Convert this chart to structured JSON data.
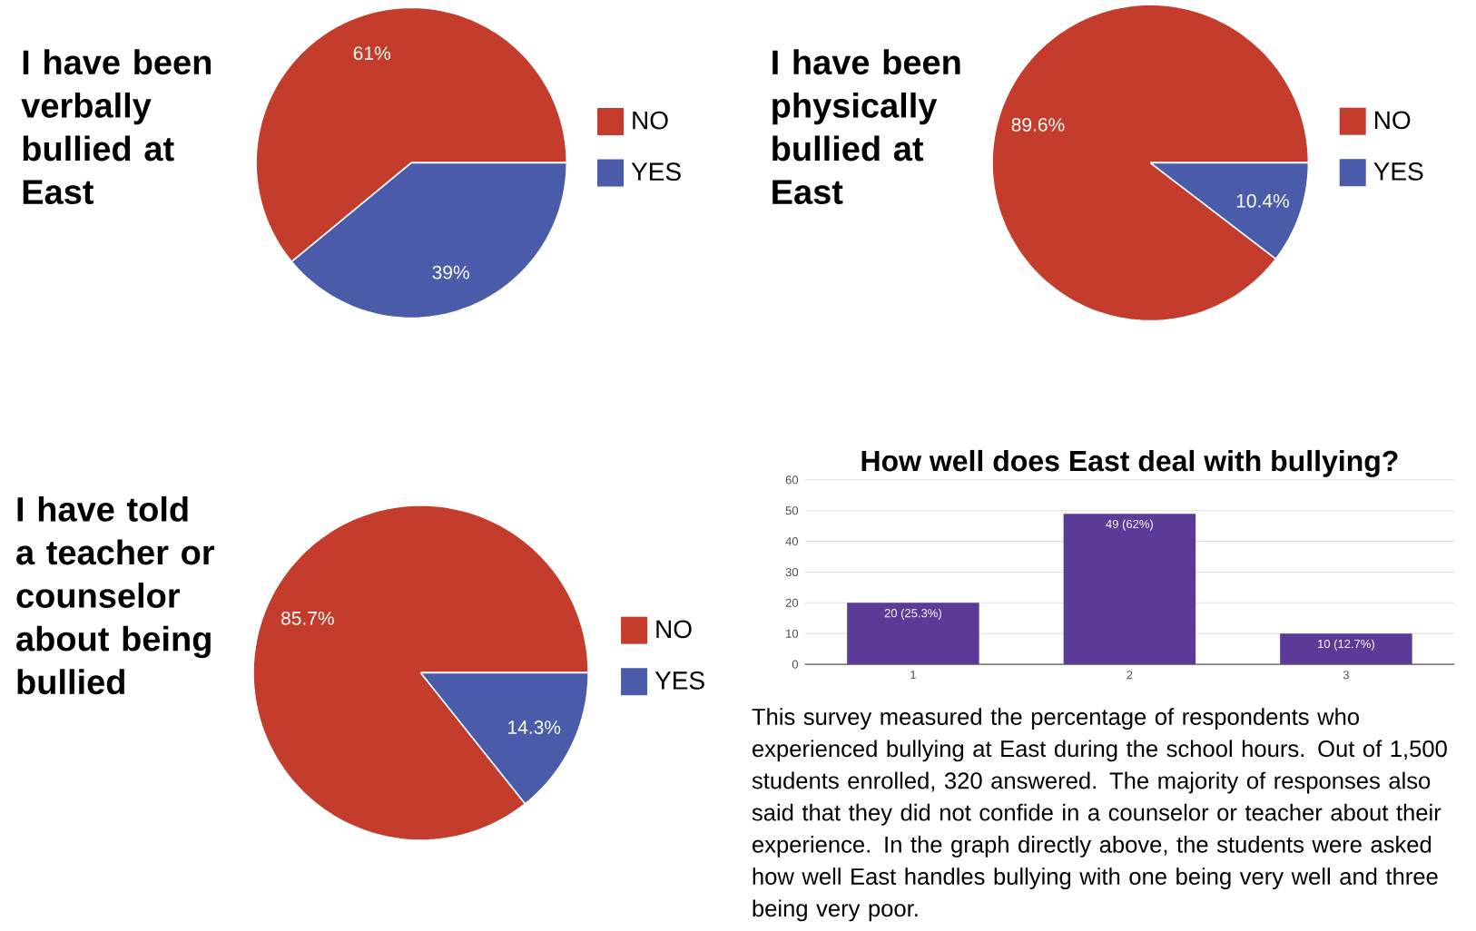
{
  "chart_data": [
    {
      "type": "pie",
      "title": "I have been verbally bullied at East",
      "categories": [
        "NO",
        "YES"
      ],
      "values": [
        61,
        39
      ],
      "colors": [
        "#c43c2b",
        "#4a5ba9"
      ],
      "value_labels": [
        "61%",
        "39%"
      ],
      "legend": "right"
    },
    {
      "type": "pie",
      "title": "I have been physically bullied at East",
      "categories": [
        "NO",
        "YES"
      ],
      "values": [
        89.6,
        10.4
      ],
      "colors": [
        "#c43c2b",
        "#4a5ba9"
      ],
      "value_labels": [
        "89.6%",
        "10.4%"
      ],
      "legend": "right"
    },
    {
      "type": "pie",
      "title": "I have told a teacher or counselor about being bullied",
      "categories": [
        "NO",
        "YES"
      ],
      "values": [
        85.7,
        14.3
      ],
      "colors": [
        "#c43c2b",
        "#4a5ba9"
      ],
      "value_labels": [
        "85.7%",
        "14.3%"
      ],
      "legend": "right"
    },
    {
      "type": "bar",
      "title": "How well does East deal with bullying?",
      "categories": [
        "1",
        "2",
        "3"
      ],
      "values": [
        20,
        49,
        10
      ],
      "color": "#5c3b98",
      "value_labels": [
        "20 (25.3%)",
        "49 (62%)",
        "10 (12.7%)"
      ],
      "ylim": [
        0,
        60
      ],
      "yticks": [
        0,
        10,
        20,
        30,
        40,
        50,
        60
      ],
      "grid": "y",
      "annotations": [
        "This survey measured the percentage of respondents who experienced bullying at East during the school hours. Out of 1,500 students enrolled, 320 answered. The majority of responses also said that they did not confide in a counselor or teacher about their experience. In the graph directly above, the students were asked how well East handles bullying with one being very well and three being very poor."
      ]
    }
  ]
}
